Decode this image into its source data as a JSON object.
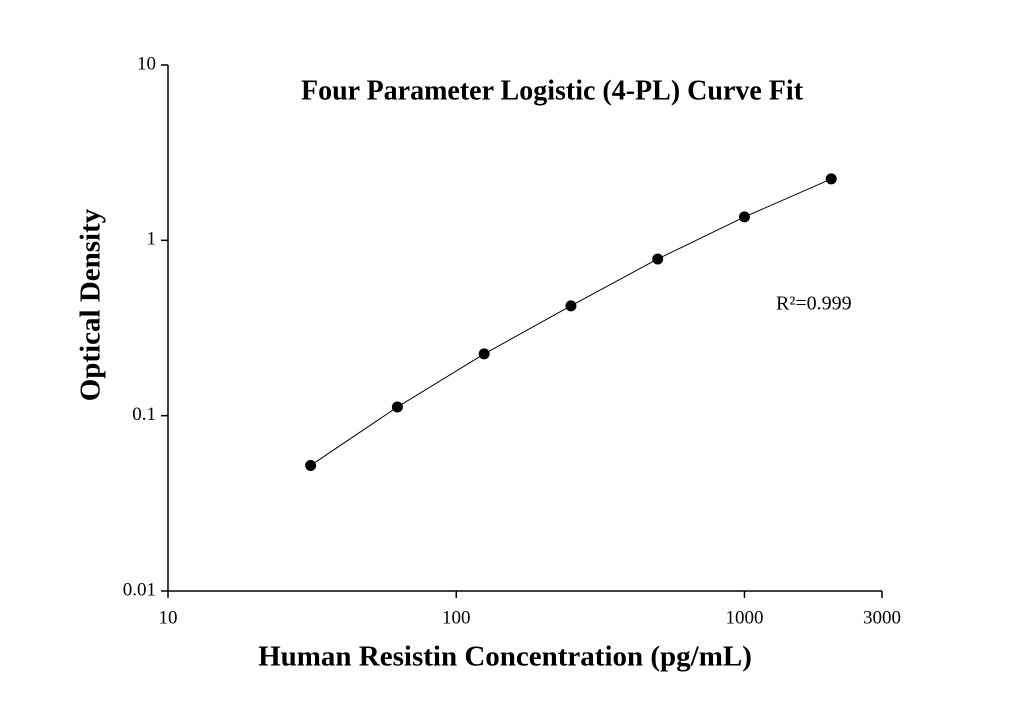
{
  "chart_data": {
    "type": "scatter",
    "title": "Four Parameter Logistic (4-PL) Curve Fit",
    "x_label": "Human Resistin Concentration (pg/mL)",
    "y_label": "Optical Density",
    "annotation": "R²=0.999",
    "x": [
      31.25,
      62.5,
      125,
      250,
      500,
      1000,
      2000
    ],
    "series": [
      {
        "color": "#000000",
        "values": [
          0.052,
          0.112,
          0.225,
          0.423,
          0.783,
          1.36,
          2.24
        ]
      }
    ],
    "xlim": [
      10,
      3000
    ],
    "ylim": [
      0.01,
      10
    ],
    "xticks": [
      10,
      100,
      1000,
      3000
    ],
    "yticks": [
      0.01,
      0.1,
      1,
      10
    ],
    "xscale": "log",
    "yscale": "log",
    "fit_line": true
  }
}
